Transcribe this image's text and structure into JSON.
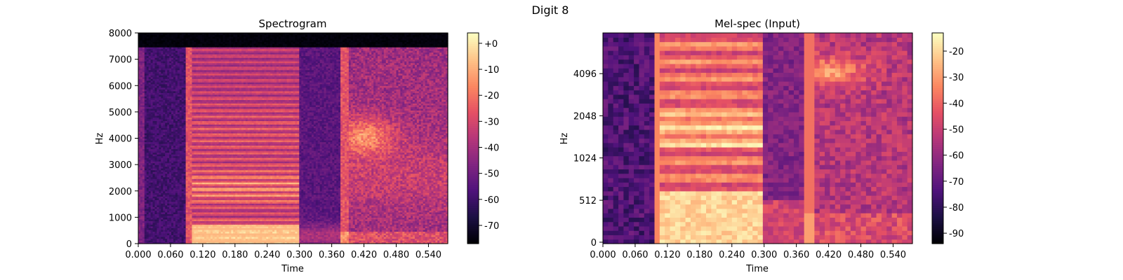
{
  "suptitle": "Digit 8",
  "colormap": {
    "name": "magma",
    "stops": [
      "#000004",
      "#1c1044",
      "#4f127b",
      "#812581",
      "#b5367a",
      "#e55064",
      "#fb8761",
      "#fec287",
      "#fcfdbf"
    ]
  },
  "chart_data": [
    {
      "type": "heatmap",
      "title": "Spectrogram",
      "xlabel": "Time",
      "ylabel": "Hz",
      "xlim": [
        0,
        0.576
      ],
      "ylim": [
        0,
        8000
      ],
      "x_scale": "linear",
      "y_scale": "linear",
      "x_ticks": [
        0,
        0.06,
        0.12,
        0.18,
        0.24,
        0.3,
        0.36,
        0.42,
        0.48,
        0.54
      ],
      "x_tick_labels": [
        "0.000",
        "0.060",
        "0.120",
        "0.180",
        "0.240",
        "0.300",
        "0.360",
        "0.420",
        "0.480",
        "0.540"
      ],
      "y_ticks": [
        0,
        1000,
        2000,
        3000,
        4000,
        5000,
        6000,
        7000,
        8000
      ],
      "y_tick_labels": [
        "0",
        "1000",
        "2000",
        "3000",
        "4000",
        "5000",
        "6000",
        "7000",
        "8000"
      ],
      "colorbar": {
        "range": [
          -77,
          4
        ],
        "ticks": [
          0,
          -10,
          -20,
          -30,
          -40,
          -50,
          -60,
          -70
        ],
        "tick_labels": [
          "+0",
          "-10",
          "-20",
          "-30",
          "-40",
          "-50",
          "-60",
          "-70"
        ]
      },
      "segments": [
        {
          "t_start": 0.0,
          "t_end": 0.09,
          "level": "silence"
        },
        {
          "t_start": 0.09,
          "t_end": 0.3,
          "level": "voiced",
          "harmonic_band_hz": [
            0,
            3000
          ]
        },
        {
          "t_start": 0.3,
          "t_end": 0.375,
          "level": "gap"
        },
        {
          "t_start": 0.375,
          "t_end": 0.576,
          "level": "fricative",
          "peak_band_hz": [
            3800,
            4400
          ]
        }
      ]
    },
    {
      "type": "heatmap",
      "title": "Mel-spec (Input)",
      "xlabel": "Time",
      "ylabel": "Hz",
      "xlim": [
        0,
        0.576
      ],
      "y_scale": "mel",
      "x_ticks": [
        0,
        0.06,
        0.12,
        0.18,
        0.24,
        0.3,
        0.36,
        0.42,
        0.48,
        0.54
      ],
      "x_tick_labels": [
        "0.000",
        "0.060",
        "0.120",
        "0.180",
        "0.240",
        "0.300",
        "0.360",
        "0.420",
        "0.480",
        "0.540"
      ],
      "y_ticks": [
        0,
        512,
        1024,
        2048,
        4096
      ],
      "y_tick_labels": [
        "0",
        "512",
        "1024",
        "2048",
        "4096"
      ],
      "colorbar": {
        "range": [
          -94,
          -13
        ],
        "ticks": [
          -20,
          -30,
          -40,
          -50,
          -60,
          -70,
          -80,
          -90
        ],
        "tick_labels": [
          "-20",
          "-30",
          "-40",
          "-50",
          "-60",
          "-70",
          "-80",
          "-90"
        ]
      },
      "segments": [
        {
          "t_start": 0.0,
          "t_end": 0.098,
          "level": "silence"
        },
        {
          "t_start": 0.098,
          "t_end": 0.3,
          "level": "voiced",
          "peak_band_hz": [
            200,
            700
          ]
        },
        {
          "t_start": 0.3,
          "t_end": 0.375,
          "level": "gap"
        },
        {
          "t_start": 0.375,
          "t_end": 0.576,
          "level": "fricative",
          "peak_band_hz": [
            3800,
            4600
          ]
        }
      ]
    }
  ]
}
